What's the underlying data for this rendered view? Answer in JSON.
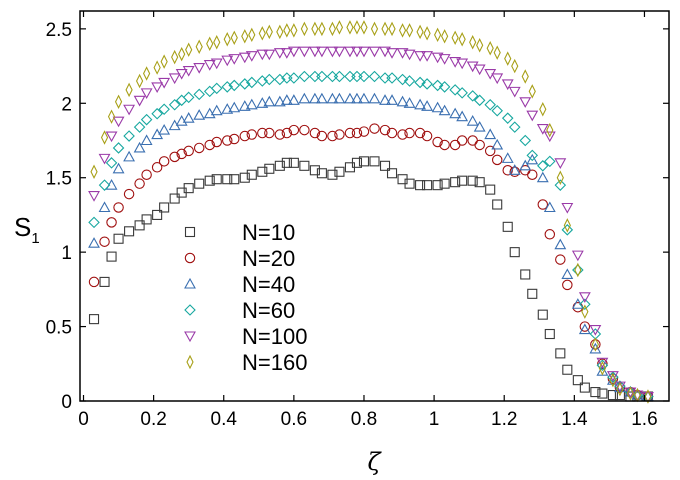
{
  "chart_data": {
    "type": "scatter",
    "title": "",
    "xlabel": "ζ",
    "ylabel": {
      "main": "S",
      "sub": "1"
    },
    "xlim": [
      -0.01,
      1.67
    ],
    "ylim": [
      0,
      2.62
    ],
    "x_ticks": [
      {
        "value": 0,
        "label": "0"
      },
      {
        "value": 0.2,
        "label": "0.2"
      },
      {
        "value": 0.4,
        "label": "0.4"
      },
      {
        "value": 0.6,
        "label": "0.6"
      },
      {
        "value": 0.8,
        "label": "0.8"
      },
      {
        "value": 1.0,
        "label": "1"
      },
      {
        "value": 1.2,
        "label": "1.2"
      },
      {
        "value": 1.4,
        "label": "1.4"
      },
      {
        "value": 1.6,
        "label": "1.6"
      }
    ],
    "y_ticks": [
      {
        "value": 0,
        "label": "0"
      },
      {
        "value": 0.5,
        "label": "0.5"
      },
      {
        "value": 1.0,
        "label": "1"
      },
      {
        "value": 1.5,
        "label": "1.5"
      },
      {
        "value": 2.0,
        "label": "2"
      },
      {
        "value": 2.5,
        "label": "2.5"
      }
    ],
    "legend_position": "center-left",
    "series": [
      {
        "name": "N=10",
        "marker": "square",
        "color": "#3a3a3a",
        "x": [
          0.03,
          0.06,
          0.08,
          0.1,
          0.13,
          0.16,
          0.18,
          0.21,
          0.23,
          0.26,
          0.28,
          0.3,
          0.33,
          0.36,
          0.38,
          0.41,
          0.43,
          0.46,
          0.48,
          0.51,
          0.53,
          0.56,
          0.58,
          0.6,
          0.63,
          0.66,
          0.68,
          0.71,
          0.73,
          0.76,
          0.78,
          0.8,
          0.83,
          0.86,
          0.88,
          0.91,
          0.93,
          0.96,
          0.98,
          1.01,
          1.03,
          1.06,
          1.08,
          1.11,
          1.13,
          1.16,
          1.18,
          1.21,
          1.23,
          1.26,
          1.28,
          1.31,
          1.33,
          1.36,
          1.38,
          1.41,
          1.43,
          1.46,
          1.48,
          1.51,
          1.53,
          1.56,
          1.58,
          1.61
        ],
        "y": [
          0.55,
          0.8,
          0.97,
          1.09,
          1.14,
          1.18,
          1.22,
          1.25,
          1.3,
          1.36,
          1.4,
          1.43,
          1.46,
          1.48,
          1.49,
          1.49,
          1.49,
          1.5,
          1.52,
          1.54,
          1.56,
          1.58,
          1.6,
          1.6,
          1.58,
          1.55,
          1.53,
          1.52,
          1.54,
          1.57,
          1.6,
          1.61,
          1.61,
          1.58,
          1.53,
          1.49,
          1.46,
          1.45,
          1.45,
          1.45,
          1.46,
          1.47,
          1.48,
          1.48,
          1.47,
          1.42,
          1.32,
          1.17,
          1.0,
          0.85,
          0.72,
          0.58,
          0.45,
          0.32,
          0.21,
          0.14,
          0.09,
          0.06,
          0.05,
          0.04,
          0.04,
          0.03,
          0.03,
          0.03
        ]
      },
      {
        "name": "N=20",
        "marker": "circle",
        "color": "#a01010",
        "x": [
          0.03,
          0.06,
          0.08,
          0.1,
          0.13,
          0.16,
          0.18,
          0.21,
          0.23,
          0.26,
          0.28,
          0.3,
          0.33,
          0.36,
          0.38,
          0.41,
          0.43,
          0.46,
          0.48,
          0.51,
          0.53,
          0.56,
          0.58,
          0.6,
          0.63,
          0.66,
          0.68,
          0.71,
          0.73,
          0.76,
          0.78,
          0.8,
          0.83,
          0.86,
          0.88,
          0.91,
          0.93,
          0.96,
          0.98,
          1.01,
          1.03,
          1.06,
          1.08,
          1.11,
          1.13,
          1.16,
          1.18,
          1.21,
          1.23,
          1.26,
          1.28,
          1.31,
          1.33,
          1.36,
          1.38,
          1.41,
          1.43,
          1.46,
          1.48,
          1.51,
          1.53,
          1.56,
          1.58,
          1.61
        ],
        "y": [
          0.8,
          1.07,
          1.2,
          1.3,
          1.39,
          1.46,
          1.52,
          1.57,
          1.61,
          1.64,
          1.66,
          1.68,
          1.7,
          1.72,
          1.74,
          1.75,
          1.76,
          1.78,
          1.79,
          1.8,
          1.8,
          1.79,
          1.8,
          1.82,
          1.82,
          1.8,
          1.78,
          1.78,
          1.79,
          1.8,
          1.8,
          1.81,
          1.83,
          1.82,
          1.8,
          1.79,
          1.8,
          1.8,
          1.78,
          1.74,
          1.72,
          1.72,
          1.75,
          1.75,
          1.72,
          1.68,
          1.62,
          1.55,
          1.54,
          1.55,
          1.52,
          1.32,
          1.12,
          0.95,
          0.78,
          0.63,
          0.5,
          0.38,
          0.25,
          0.15,
          0.09,
          0.06,
          0.04,
          0.03
        ]
      },
      {
        "name": "N=40",
        "marker": "triangle-up",
        "color": "#3a6fb0",
        "x": [
          0.03,
          0.06,
          0.08,
          0.1,
          0.13,
          0.16,
          0.18,
          0.21,
          0.23,
          0.26,
          0.28,
          0.3,
          0.33,
          0.36,
          0.38,
          0.41,
          0.43,
          0.46,
          0.48,
          0.51,
          0.53,
          0.56,
          0.58,
          0.6,
          0.63,
          0.66,
          0.68,
          0.71,
          0.73,
          0.76,
          0.78,
          0.8,
          0.83,
          0.86,
          0.88,
          0.91,
          0.93,
          0.96,
          0.98,
          1.01,
          1.03,
          1.06,
          1.08,
          1.11,
          1.13,
          1.16,
          1.18,
          1.21,
          1.23,
          1.26,
          1.28,
          1.31,
          1.33,
          1.36,
          1.38,
          1.41,
          1.43,
          1.46,
          1.48,
          1.51,
          1.53,
          1.56,
          1.58,
          1.61
        ],
        "y": [
          1.06,
          1.3,
          1.45,
          1.56,
          1.64,
          1.7,
          1.75,
          1.79,
          1.82,
          1.85,
          1.88,
          1.9,
          1.92,
          1.93,
          1.95,
          1.96,
          1.97,
          1.98,
          1.99,
          2.0,
          2.01,
          2.01,
          2.02,
          2.02,
          2.03,
          2.03,
          2.03,
          2.03,
          2.03,
          2.03,
          2.03,
          2.03,
          2.03,
          2.02,
          2.02,
          2.01,
          2.0,
          1.99,
          1.98,
          1.97,
          1.95,
          1.93,
          1.91,
          1.88,
          1.84,
          1.79,
          1.72,
          1.63,
          1.55,
          1.58,
          1.62,
          1.5,
          1.3,
          1.05,
          0.85,
          0.65,
          0.48,
          0.35,
          0.2,
          0.14,
          0.09,
          0.06,
          0.04,
          0.03
        ]
      },
      {
        "name": "N=60",
        "marker": "diamond",
        "color": "#18a8a0",
        "x": [
          0.03,
          0.06,
          0.08,
          0.1,
          0.13,
          0.16,
          0.18,
          0.21,
          0.23,
          0.26,
          0.28,
          0.3,
          0.33,
          0.36,
          0.38,
          0.41,
          0.43,
          0.46,
          0.48,
          0.51,
          0.53,
          0.56,
          0.58,
          0.6,
          0.63,
          0.66,
          0.68,
          0.71,
          0.73,
          0.76,
          0.78,
          0.8,
          0.83,
          0.86,
          0.88,
          0.91,
          0.93,
          0.96,
          0.98,
          1.01,
          1.03,
          1.06,
          1.08,
          1.11,
          1.13,
          1.16,
          1.18,
          1.21,
          1.23,
          1.26,
          1.28,
          1.31,
          1.33,
          1.36,
          1.38,
          1.41,
          1.43,
          1.46,
          1.48,
          1.51,
          1.53,
          1.56,
          1.58,
          1.61
        ],
        "y": [
          1.2,
          1.45,
          1.6,
          1.7,
          1.78,
          1.84,
          1.89,
          1.93,
          1.96,
          1.99,
          2.02,
          2.04,
          2.06,
          2.08,
          2.1,
          2.11,
          2.12,
          2.13,
          2.14,
          2.15,
          2.16,
          2.16,
          2.17,
          2.17,
          2.18,
          2.18,
          2.18,
          2.18,
          2.18,
          2.18,
          2.18,
          2.18,
          2.18,
          2.17,
          2.17,
          2.16,
          2.15,
          2.14,
          2.13,
          2.12,
          2.11,
          2.09,
          2.07,
          2.05,
          2.02,
          1.99,
          1.95,
          1.9,
          1.84,
          1.75,
          1.65,
          1.58,
          1.61,
          1.45,
          1.15,
          0.88,
          0.65,
          0.45,
          0.24,
          0.16,
          0.1,
          0.06,
          0.04,
          0.03
        ]
      },
      {
        "name": "N=100",
        "marker": "triangle-down",
        "color": "#9a3aa8",
        "x": [
          0.03,
          0.06,
          0.08,
          0.1,
          0.13,
          0.16,
          0.18,
          0.21,
          0.23,
          0.26,
          0.28,
          0.3,
          0.33,
          0.36,
          0.38,
          0.41,
          0.43,
          0.46,
          0.48,
          0.51,
          0.53,
          0.56,
          0.58,
          0.6,
          0.63,
          0.66,
          0.68,
          0.71,
          0.73,
          0.76,
          0.78,
          0.8,
          0.83,
          0.86,
          0.88,
          0.91,
          0.93,
          0.96,
          0.98,
          1.01,
          1.03,
          1.06,
          1.08,
          1.11,
          1.13,
          1.16,
          1.18,
          1.21,
          1.23,
          1.26,
          1.28,
          1.31,
          1.33,
          1.36,
          1.38,
          1.41,
          1.43,
          1.46,
          1.48,
          1.51,
          1.53,
          1.56,
          1.58,
          1.61
        ],
        "y": [
          1.38,
          1.63,
          1.78,
          1.88,
          1.96,
          2.02,
          2.07,
          2.11,
          2.14,
          2.17,
          2.2,
          2.22,
          2.24,
          2.26,
          2.27,
          2.29,
          2.3,
          2.31,
          2.32,
          2.33,
          2.33,
          2.34,
          2.34,
          2.35,
          2.35,
          2.35,
          2.35,
          2.35,
          2.35,
          2.35,
          2.35,
          2.35,
          2.35,
          2.35,
          2.34,
          2.34,
          2.33,
          2.32,
          2.32,
          2.31,
          2.3,
          2.28,
          2.27,
          2.25,
          2.23,
          2.2,
          2.17,
          2.13,
          2.08,
          2.01,
          1.92,
          1.83,
          1.78,
          1.6,
          1.3,
          0.98,
          0.7,
          0.48,
          0.26,
          0.17,
          0.1,
          0.06,
          0.04,
          0.03
        ]
      },
      {
        "name": "N=160",
        "marker": "thin-diamond",
        "color": "#a8a018",
        "x": [
          0.03,
          0.06,
          0.08,
          0.1,
          0.13,
          0.16,
          0.18,
          0.21,
          0.23,
          0.26,
          0.28,
          0.3,
          0.33,
          0.36,
          0.38,
          0.41,
          0.43,
          0.46,
          0.48,
          0.51,
          0.53,
          0.56,
          0.58,
          0.6,
          0.63,
          0.66,
          0.68,
          0.71,
          0.73,
          0.76,
          0.78,
          0.8,
          0.83,
          0.86,
          0.88,
          0.91,
          0.93,
          0.96,
          0.98,
          1.01,
          1.03,
          1.06,
          1.08,
          1.11,
          1.13,
          1.16,
          1.18,
          1.21,
          1.23,
          1.26,
          1.28,
          1.31,
          1.33,
          1.36,
          1.38,
          1.41,
          1.43,
          1.46,
          1.48,
          1.51,
          1.53,
          1.56,
          1.58,
          1.61
        ],
        "y": [
          1.54,
          1.77,
          1.91,
          2.01,
          2.09,
          2.15,
          2.2,
          2.24,
          2.28,
          2.31,
          2.33,
          2.36,
          2.38,
          2.4,
          2.41,
          2.43,
          2.44,
          2.45,
          2.46,
          2.47,
          2.48,
          2.48,
          2.49,
          2.49,
          2.5,
          2.5,
          2.5,
          2.5,
          2.51,
          2.51,
          2.51,
          2.51,
          2.5,
          2.5,
          2.5,
          2.49,
          2.49,
          2.48,
          2.47,
          2.46,
          2.45,
          2.44,
          2.43,
          2.41,
          2.39,
          2.37,
          2.34,
          2.3,
          2.25,
          2.18,
          2.08,
          1.96,
          1.82,
          1.5,
          1.18,
          0.88,
          0.6,
          0.38,
          0.22,
          0.14,
          0.08,
          0.05,
          0.04,
          0.03
        ]
      }
    ]
  }
}
